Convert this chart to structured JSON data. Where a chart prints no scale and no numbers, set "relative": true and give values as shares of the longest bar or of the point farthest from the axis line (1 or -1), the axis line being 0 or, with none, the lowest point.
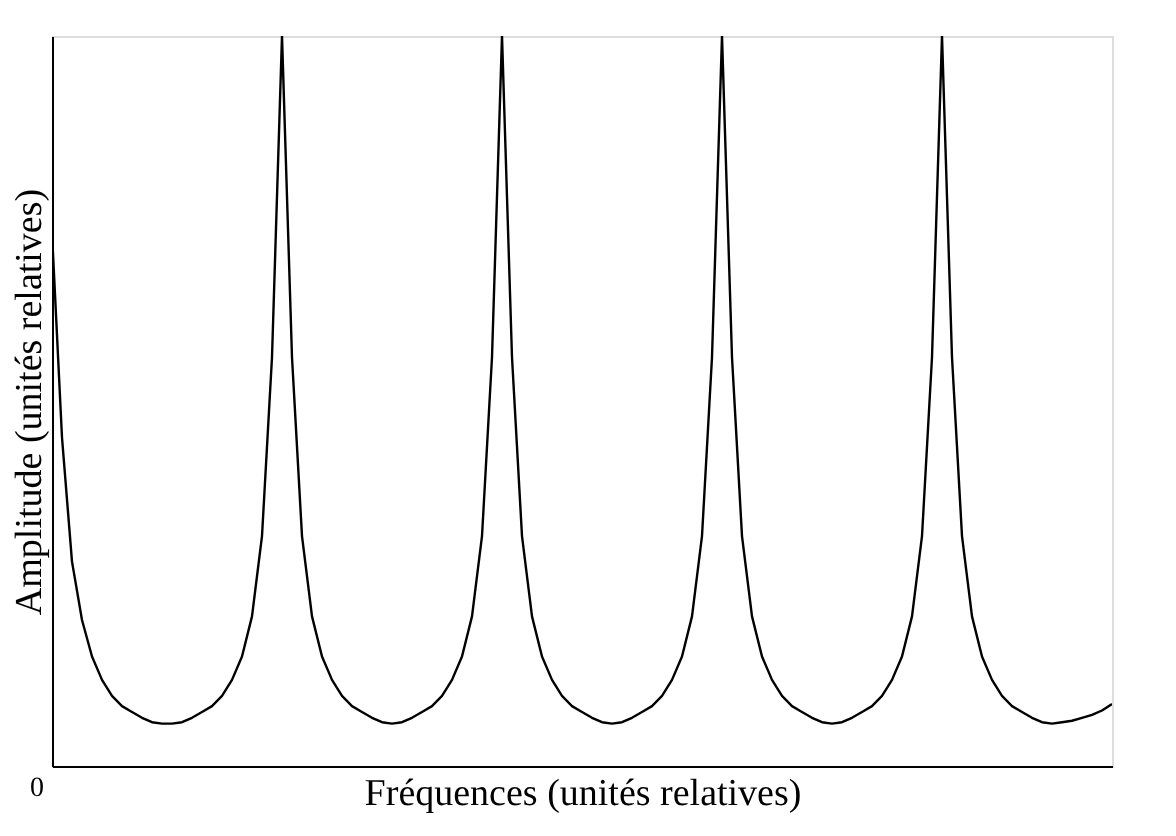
{
  "chart_data": {
    "type": "line",
    "relative": true,
    "xlabel": "Fréquences (unités relatives)",
    "ylabel": "Amplitude (unités relatives)",
    "color": "#000000",
    "marker": "none",
    "grid": false,
    "annotations": [
      "0"
    ],
    "categories": [
      null,
      null,
      null,
      null,
      null,
      null,
      null,
      null,
      null,
      null,
      null,
      null,
      null,
      null,
      null,
      null,
      null,
      null,
      null,
      null,
      null,
      null,
      null,
      null,
      null,
      null,
      null,
      null,
      null,
      null,
      null,
      null,
      null,
      null,
      null,
      null,
      null,
      null,
      null,
      null,
      null,
      null,
      null,
      null,
      null,
      null,
      null,
      null,
      null,
      null,
      null,
      null,
      null,
      null,
      null,
      null,
      null,
      null,
      null,
      null,
      null,
      null,
      null,
      null,
      null,
      null,
      null,
      null,
      null,
      null,
      null,
      null,
      null,
      null,
      null,
      null,
      null,
      null,
      null,
      null,
      null,
      null,
      null,
      null,
      null,
      null,
      null,
      null,
      null,
      null,
      null,
      null,
      null,
      null,
      null,
      null,
      null,
      null,
      null,
      null,
      null,
      null,
      null,
      null,
      null,
      null,
      null
    ],
    "values": [
      0.73,
      0.45,
      0.28,
      0.2,
      0.15,
      0.118,
      0.096,
      0.082,
      0.074,
      0.066,
      0.06,
      0.058,
      0.058,
      0.06,
      0.066,
      0.074,
      0.082,
      0.096,
      0.118,
      0.15,
      0.205,
      0.315,
      0.56,
      1,
      0.56,
      0.315,
      0.205,
      0.15,
      0.118,
      0.096,
      0.082,
      0.074,
      0.066,
      0.06,
      0.058,
      0.06,
      0.066,
      0.074,
      0.082,
      0.096,
      0.118,
      0.15,
      0.205,
      0.315,
      0.56,
      1,
      0.56,
      0.315,
      0.205,
      0.15,
      0.118,
      0.096,
      0.082,
      0.074,
      0.066,
      0.06,
      0.058,
      0.06,
      0.066,
      0.074,
      0.082,
      0.096,
      0.118,
      0.15,
      0.205,
      0.315,
      0.56,
      1,
      0.56,
      0.315,
      0.205,
      0.15,
      0.118,
      0.096,
      0.082,
      0.074,
      0.066,
      0.06,
      0.058,
      0.06,
      0.066,
      0.074,
      0.082,
      0.096,
      0.118,
      0.15,
      0.205,
      0.315,
      0.56,
      1,
      0.56,
      0.315,
      0.205,
      0.15,
      0.118,
      0.096,
      0.082,
      0.074,
      0.066,
      0.06,
      0.058,
      0.06,
      0.062,
      0.066,
      0.07,
      0.076,
      0.085
    ]
  }
}
